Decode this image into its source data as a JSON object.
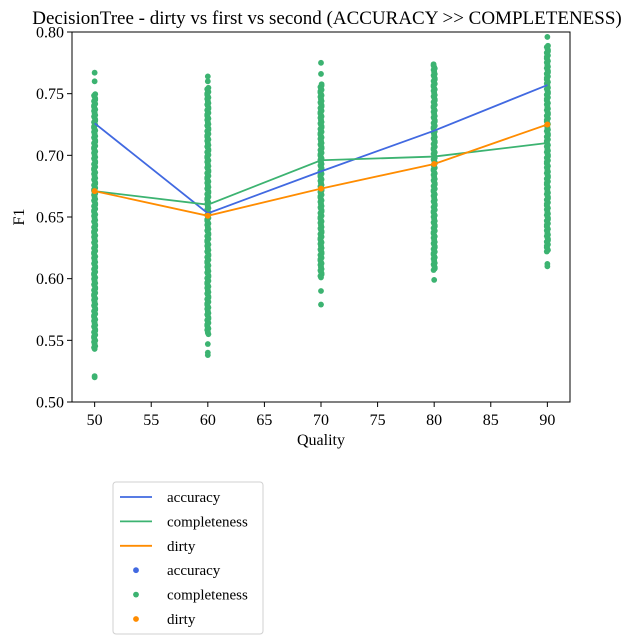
{
  "chart_data": {
    "type": "line+scatter",
    "title": "DecisionTree - dirty vs first vs second (ACCURACY >> COMPLETENESS)",
    "xlabel": "Quality",
    "ylabel": "F1",
    "xlim": [
      48,
      92
    ],
    "ylim": [
      0.5,
      0.8
    ],
    "xticks": [
      50,
      55,
      60,
      65,
      70,
      75,
      80,
      85,
      90
    ],
    "yticks": [
      0.5,
      0.55,
      0.6,
      0.65,
      0.7,
      0.75,
      0.8
    ],
    "ytick_labels": [
      "0.50",
      "0.55",
      "0.60",
      "0.65",
      "0.70",
      "0.75",
      "0.80"
    ],
    "x": [
      50,
      60,
      70,
      80,
      90
    ],
    "lines": [
      {
        "name": "accuracy",
        "color": "#4169e1",
        "values": [
          0.726,
          0.653,
          0.687,
          0.72,
          0.757
        ]
      },
      {
        "name": "completeness",
        "color": "#3cb371",
        "values": [
          0.671,
          0.66,
          0.696,
          0.699,
          0.71
        ]
      },
      {
        "name": "dirty",
        "color": "#ff8c00",
        "values": [
          0.671,
          0.651,
          0.673,
          0.693,
          0.725
        ]
      }
    ],
    "scatter": [
      {
        "name": "accuracy",
        "color": "#4169e1"
      },
      {
        "name": "completeness",
        "color": "#3cb371",
        "ranges": [
          {
            "x": 50,
            "min": 0.543,
            "max": 0.75,
            "outliers": [
              0.52,
              0.521,
              0.767,
              0.76
            ]
          },
          {
            "x": 60,
            "min": 0.555,
            "max": 0.755,
            "outliers": [
              0.538,
              0.54,
              0.547,
              0.764,
              0.76
            ]
          },
          {
            "x": 70,
            "min": 0.601,
            "max": 0.758,
            "outliers": [
              0.579,
              0.59,
              0.775,
              0.766
            ]
          },
          {
            "x": 80,
            "min": 0.607,
            "max": 0.775,
            "outliers": [
              0.599
            ]
          },
          {
            "x": 90,
            "min": 0.622,
            "max": 0.79,
            "outliers": [
              0.61,
              0.612,
              0.796
            ]
          }
        ]
      },
      {
        "name": "dirty",
        "color": "#ff8c00",
        "points": [
          [
            50,
            0.671
          ],
          [
            60,
            0.651
          ],
          [
            70,
            0.673
          ],
          [
            80,
            0.693
          ],
          [
            90,
            0.725
          ]
        ]
      }
    ],
    "legend": {
      "placement": "below-left",
      "entries": [
        {
          "label": "accuracy",
          "kind": "line",
          "color": "#4169e1"
        },
        {
          "label": "completeness",
          "kind": "line",
          "color": "#3cb371"
        },
        {
          "label": "dirty",
          "kind": "line",
          "color": "#ff8c00"
        },
        {
          "label": "accuracy",
          "kind": "dot",
          "color": "#4169e1"
        },
        {
          "label": "completeness",
          "kind": "dot",
          "color": "#3cb371"
        },
        {
          "label": "dirty",
          "kind": "dot",
          "color": "#ff8c00"
        }
      ]
    }
  }
}
